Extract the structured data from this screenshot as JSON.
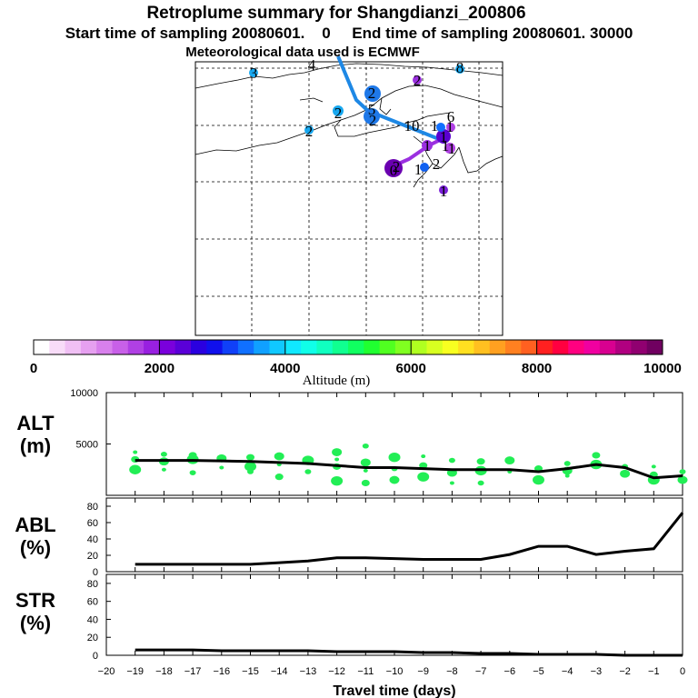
{
  "colors": {
    "trajectory_blue": "#1e88e5",
    "trajectory_purple": "#9b30e0",
    "scatter_green": "#22ee55",
    "line": "#000000"
  },
  "header": {
    "title": "Retroplume summary for Shangdianzi_200806",
    "subtitle": "Start time of sampling 20080601.    0     End time of sampling 20080601. 30000",
    "met": "Meteorological data used is ECMWF"
  },
  "colorbar": {
    "label": "Altitude  (m)",
    "ticks": [
      "0",
      "2000",
      "4000",
      "6000",
      "8000",
      "10000"
    ],
    "colors": [
      "#ffffff",
      "#f8dcf8",
      "#f0c0f4",
      "#e6a0f0",
      "#d880ec",
      "#c860e8",
      "#b040e4",
      "#9820e0",
      "#7a00dc",
      "#5a00d8",
      "#2a00e0",
      "#1010ec",
      "#1040f8",
      "#1070ff",
      "#10a0ff",
      "#10c8ff",
      "#10e8ff",
      "#10ffe8",
      "#10ffc0",
      "#10ff90",
      "#10ff60",
      "#20ff30",
      "#50ff20",
      "#80ff20",
      "#b0ff20",
      "#d8ff20",
      "#f8ff20",
      "#ffe020",
      "#ffc020",
      "#ffa020",
      "#ff8020",
      "#ff6020",
      "#ff2020",
      "#ff0040",
      "#ff0080",
      "#f000a0",
      "#d80090",
      "#b00080",
      "#900070",
      "#700060"
    ]
  },
  "map": {
    "labels": [
      "4",
      "3",
      "8",
      "2",
      "2",
      "2",
      "2",
      "5",
      "2",
      "10",
      "1",
      "6",
      "1",
      "1",
      "0",
      "1",
      "2",
      "1",
      "1",
      "1",
      "2",
      "1"
    ]
  },
  "chart_data": [
    {
      "type": "scatter",
      "panel": "ALT",
      "ylabel_line1": "ALT",
      "ylabel_line2": "(m)",
      "ylim": [
        0,
        10000
      ],
      "yticks": [
        "10000",
        "5000"
      ],
      "x": [
        -19,
        -18,
        -17,
        -16,
        -15,
        -14,
        -13,
        -12,
        -11,
        -10,
        -9,
        -8,
        -7,
        -6,
        -5,
        -4,
        -3,
        -2,
        -1,
        0
      ],
      "line_values": [
        3400,
        3400,
        3400,
        3350,
        3300,
        3200,
        3100,
        2900,
        2700,
        2700,
        2600,
        2500,
        2500,
        2500,
        2300,
        2600,
        3000,
        2700,
        1700,
        1900
      ],
      "scatter_points": [
        [
          -19,
          4200
        ],
        [
          -19,
          3500
        ],
        [
          -19,
          2500
        ],
        [
          -18,
          4000
        ],
        [
          -18,
          3300
        ],
        [
          -18,
          2500
        ],
        [
          -17,
          3900
        ],
        [
          -17,
          3500
        ],
        [
          -17,
          2200
        ],
        [
          -16,
          3600
        ],
        [
          -16,
          2700
        ],
        [
          -15,
          3700
        ],
        [
          -15,
          2800
        ],
        [
          -15,
          2300
        ],
        [
          -14,
          3800
        ],
        [
          -14,
          3000
        ],
        [
          -14,
          1800
        ],
        [
          -13,
          3400
        ],
        [
          -13,
          2300
        ],
        [
          -12,
          4200
        ],
        [
          -12,
          3500
        ],
        [
          -12,
          2800
        ],
        [
          -12,
          1400
        ],
        [
          -11,
          4800
        ],
        [
          -11,
          3200
        ],
        [
          -11,
          2400
        ],
        [
          -11,
          1200
        ],
        [
          -10,
          3700
        ],
        [
          -10,
          2600
        ],
        [
          -10,
          1500
        ],
        [
          -9,
          3800
        ],
        [
          -9,
          2900
        ],
        [
          -9,
          1800
        ],
        [
          -8,
          3400
        ],
        [
          -8,
          2200
        ],
        [
          -8,
          1200
        ],
        [
          -7,
          3300
        ],
        [
          -7,
          2400
        ],
        [
          -7,
          1200
        ],
        [
          -6,
          3400
        ],
        [
          -6,
          2300
        ],
        [
          -5,
          2600
        ],
        [
          -5,
          1500
        ],
        [
          -4,
          3100
        ],
        [
          -4,
          2400
        ],
        [
          -4,
          1900
        ],
        [
          -3,
          3900
        ],
        [
          -3,
          3000
        ],
        [
          -2,
          2800
        ],
        [
          -2,
          2100
        ],
        [
          -1,
          2800
        ],
        [
          -1,
          2000
        ],
        [
          -1,
          1500
        ],
        [
          0,
          2300
        ],
        [
          0,
          1500
        ]
      ]
    },
    {
      "type": "line",
      "panel": "ABL",
      "ylabel_line1": "ABL",
      "ylabel_line2": "(%)",
      "ylim": [
        0,
        90
      ],
      "yticks": [
        "80",
        "60",
        "40",
        "20",
        "0"
      ],
      "x": [
        -19,
        -18,
        -17,
        -16,
        -15,
        -14,
        -13,
        -12,
        -11,
        -10,
        -9,
        -8,
        -7,
        -6,
        -5,
        -4,
        -3,
        -2,
        -1,
        0
      ],
      "values": [
        9,
        9,
        9,
        9,
        9,
        11,
        13,
        17,
        17,
        16,
        15,
        15,
        15,
        21,
        31,
        31,
        21,
        25,
        28,
        72
      ]
    },
    {
      "type": "line",
      "panel": "STR",
      "ylabel_line1": "STR",
      "ylabel_line2": "(%)",
      "ylim": [
        0,
        90
      ],
      "yticks": [
        "80",
        "60",
        "40",
        "20",
        "0"
      ],
      "x": [
        -19,
        -18,
        -17,
        -16,
        -15,
        -14,
        -13,
        -12,
        -11,
        -10,
        -9,
        -8,
        -7,
        -6,
        -5,
        -4,
        -3,
        -2,
        -1,
        0
      ],
      "values": [
        6,
        6,
        6,
        5,
        5,
        5,
        5,
        4,
        4,
        4,
        3,
        3,
        2,
        2,
        1,
        1,
        1,
        0,
        0,
        0
      ],
      "xlabel": "Travel time (days)",
      "xticks": [
        "−20",
        "−19",
        "−18",
        "−17",
        "−16",
        "−15",
        "−14",
        "−13",
        "−12",
        "−11",
        "−10",
        "−9",
        "−8",
        "−7",
        "−6",
        "−5",
        "−4",
        "−3",
        "−2",
        "−1",
        "0"
      ]
    }
  ]
}
